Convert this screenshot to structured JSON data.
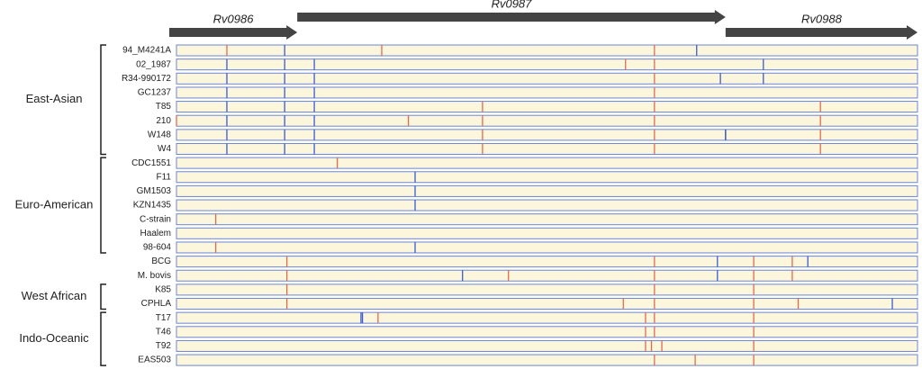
{
  "xlim": [
    0,
    1000
  ],
  "genes": [
    {
      "label": "Rv0986",
      "start": 0,
      "end": 163,
      "color": "#444444"
    },
    {
      "label": "Rv0987",
      "start": 163,
      "end": 741,
      "color": "#444444"
    },
    {
      "label": "Rv0988",
      "start": 741,
      "end": 1000,
      "color": "#444444"
    }
  ],
  "groups": [
    {
      "label": "East-Asian",
      "first": 0,
      "last": 7
    },
    {
      "label": "Euro-American",
      "first": 8,
      "last": 14
    },
    {
      "label": "West African",
      "first": 17,
      "last": 18
    },
    {
      "label": "Indo-Oceanic",
      "first": 19,
      "last": 22
    }
  ],
  "strains": [
    {
      "name": "94_M4241A",
      "snps": [
        {
          "pos": 68,
          "color": "#e06c50"
        },
        {
          "pos": 146,
          "color": "#3a5bd0"
        },
        {
          "pos": 277,
          "color": "#e06c50"
        },
        {
          "pos": 645,
          "color": "#e06c50"
        },
        {
          "pos": 702,
          "color": "#3a5bd0"
        }
      ]
    },
    {
      "name": "02_1987",
      "snps": [
        {
          "pos": 68,
          "color": "#3a5bd0"
        },
        {
          "pos": 146,
          "color": "#3a5bd0"
        },
        {
          "pos": 186,
          "color": "#3a5bd0"
        },
        {
          "pos": 606,
          "color": "#e06c50"
        },
        {
          "pos": 645,
          "color": "#e06c50"
        },
        {
          "pos": 792,
          "color": "#3a5bd0"
        }
      ]
    },
    {
      "name": "R34-990172",
      "snps": [
        {
          "pos": 68,
          "color": "#3a5bd0"
        },
        {
          "pos": 146,
          "color": "#3a5bd0"
        },
        {
          "pos": 186,
          "color": "#3a5bd0"
        },
        {
          "pos": 645,
          "color": "#e06c50"
        },
        {
          "pos": 734,
          "color": "#3a5bd0"
        },
        {
          "pos": 792,
          "color": "#3a5bd0"
        }
      ]
    },
    {
      "name": "GC1237",
      "snps": [
        {
          "pos": 68,
          "color": "#3a5bd0"
        },
        {
          "pos": 146,
          "color": "#3a5bd0"
        },
        {
          "pos": 186,
          "color": "#3a5bd0"
        },
        {
          "pos": 645,
          "color": "#e06c50"
        }
      ]
    },
    {
      "name": "T85",
      "snps": [
        {
          "pos": 68,
          "color": "#3a5bd0"
        },
        {
          "pos": 146,
          "color": "#3a5bd0"
        },
        {
          "pos": 186,
          "color": "#3a5bd0"
        },
        {
          "pos": 413,
          "color": "#e06c50"
        },
        {
          "pos": 645,
          "color": "#e06c50"
        },
        {
          "pos": 869,
          "color": "#e06c50"
        }
      ]
    },
    {
      "name": "210",
      "snps": [
        {
          "pos": 0,
          "color": "#e06c50"
        },
        {
          "pos": 68,
          "color": "#3a5bd0"
        },
        {
          "pos": 146,
          "color": "#3a5bd0"
        },
        {
          "pos": 186,
          "color": "#3a5bd0"
        },
        {
          "pos": 313,
          "color": "#e06c50"
        },
        {
          "pos": 413,
          "color": "#e06c50"
        },
        {
          "pos": 645,
          "color": "#e06c50"
        },
        {
          "pos": 869,
          "color": "#e06c50"
        }
      ]
    },
    {
      "name": "W148",
      "snps": [
        {
          "pos": 68,
          "color": "#3a5bd0"
        },
        {
          "pos": 146,
          "color": "#3a5bd0"
        },
        {
          "pos": 186,
          "color": "#3a5bd0"
        },
        {
          "pos": 413,
          "color": "#e06c50"
        },
        {
          "pos": 645,
          "color": "#e06c50"
        },
        {
          "pos": 741,
          "color": "#2040b0"
        },
        {
          "pos": 869,
          "color": "#e06c50"
        }
      ]
    },
    {
      "name": "W4",
      "snps": [
        {
          "pos": 68,
          "color": "#3a5bd0"
        },
        {
          "pos": 146,
          "color": "#3a5bd0"
        },
        {
          "pos": 186,
          "color": "#3a5bd0"
        },
        {
          "pos": 413,
          "color": "#e06c50"
        },
        {
          "pos": 645,
          "color": "#e06c50"
        },
        {
          "pos": 869,
          "color": "#e06c50"
        }
      ]
    },
    {
      "name": "CDC1551",
      "snps": [
        {
          "pos": 217,
          "color": "#e06c50"
        }
      ]
    },
    {
      "name": "F11",
      "snps": [
        {
          "pos": 322,
          "color": "#3a5bd0"
        }
      ]
    },
    {
      "name": "GM1503",
      "snps": [
        {
          "pos": 322,
          "color": "#3a5bd0"
        }
      ]
    },
    {
      "name": "KZN1435",
      "snps": [
        {
          "pos": 322,
          "color": "#3a5bd0"
        }
      ]
    },
    {
      "name": "C-strain",
      "snps": [
        {
          "pos": 53,
          "color": "#e06c50"
        }
      ]
    },
    {
      "name": "Haalem",
      "snps": []
    },
    {
      "name": "98-604",
      "snps": [
        {
          "pos": 53,
          "color": "#e06c50"
        },
        {
          "pos": 322,
          "color": "#3a5bd0"
        }
      ]
    },
    {
      "name": "BCG",
      "snps": [
        {
          "pos": 149,
          "color": "#e06c50"
        },
        {
          "pos": 645,
          "color": "#e06c50"
        },
        {
          "pos": 730,
          "color": "#3a5bd0"
        },
        {
          "pos": 779,
          "color": "#e06c50"
        },
        {
          "pos": 831,
          "color": "#e06c50"
        },
        {
          "pos": 852,
          "color": "#3a5bd0"
        }
      ]
    },
    {
      "name": "M. bovis",
      "snps": [
        {
          "pos": 149,
          "color": "#e06c50"
        },
        {
          "pos": 386,
          "color": "#3a5bd0"
        },
        {
          "pos": 448,
          "color": "#e06c50"
        },
        {
          "pos": 645,
          "color": "#e06c50"
        },
        {
          "pos": 730,
          "color": "#3a5bd0"
        },
        {
          "pos": 779,
          "color": "#e06c50"
        },
        {
          "pos": 831,
          "color": "#e06c50"
        }
      ]
    },
    {
      "name": "K85",
      "snps": [
        {
          "pos": 149,
          "color": "#e06c50"
        },
        {
          "pos": 645,
          "color": "#e06c50"
        },
        {
          "pos": 779,
          "color": "#e06c50"
        }
      ]
    },
    {
      "name": "CPHLA",
      "snps": [
        {
          "pos": 149,
          "color": "#e06c50"
        },
        {
          "pos": 603,
          "color": "#e06c50"
        },
        {
          "pos": 645,
          "color": "#e06c50"
        },
        {
          "pos": 779,
          "color": "#e06c50"
        },
        {
          "pos": 839,
          "color": "#e06c50"
        },
        {
          "pos": 966,
          "color": "#3a5bd0"
        }
      ]
    },
    {
      "name": "T17",
      "snps": [
        {
          "pos": 249,
          "color": "#3a5bd0"
        },
        {
          "pos": 251,
          "color": "#3a5bd0"
        },
        {
          "pos": 272,
          "color": "#e06c50"
        },
        {
          "pos": 633,
          "color": "#e06c50"
        },
        {
          "pos": 645,
          "color": "#e06c50"
        },
        {
          "pos": 779,
          "color": "#e06c50"
        }
      ]
    },
    {
      "name": "T46",
      "snps": [
        {
          "pos": 633,
          "color": "#e06c50"
        },
        {
          "pos": 645,
          "color": "#e06c50"
        },
        {
          "pos": 779,
          "color": "#e06c50"
        }
      ]
    },
    {
      "name": "T92",
      "snps": [
        {
          "pos": 633,
          "color": "#e06c50"
        },
        {
          "pos": 641,
          "color": "#e06c50"
        },
        {
          "pos": 655,
          "color": "#e06c50"
        },
        {
          "pos": 779,
          "color": "#e06c50"
        }
      ]
    },
    {
      "name": "EAS503",
      "snps": [
        {
          "pos": 645,
          "color": "#e06c50"
        },
        {
          "pos": 700,
          "color": "#e06c50"
        },
        {
          "pos": 779,
          "color": "#e06c50"
        }
      ]
    }
  ]
}
